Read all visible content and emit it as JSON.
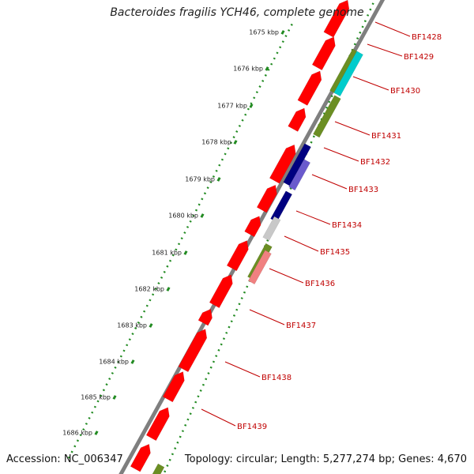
{
  "title": "Bacteroides fragilis YCH46, complete genome",
  "footer": {
    "accession": "Accession: NC_006347",
    "topology": "Topology: circular; Length: 5,277,274 bp; Genes: 4,670"
  },
  "colors": {
    "backbone": "#7f7f7f",
    "dots": "#228b22",
    "gene_forward": "#ff0000",
    "label": "#c00000",
    "olive": "#6b8e23",
    "cyan": "#00cccc",
    "navy": "#000080",
    "slate": "#6a5acd",
    "gray": "#c8c8c8",
    "salmon": "#f08080"
  },
  "ticks": [
    "1675 kbp",
    "1676 kbp",
    "1677 kbp",
    "1678 kbp",
    "1679 kbp",
    "1680 kbp",
    "1681 kbp",
    "1682 kbp",
    "1683 kbp",
    "1684 kbp",
    "1685 kbp",
    "1686 kbp"
  ],
  "gene_labels": [
    "BF1428",
    "BF1429",
    "BF1430",
    "BF1431",
    "BF1432",
    "BF1433",
    "BF1434",
    "BF1435",
    "BF1436",
    "BF1437",
    "BF1438",
    "BF1439"
  ]
}
